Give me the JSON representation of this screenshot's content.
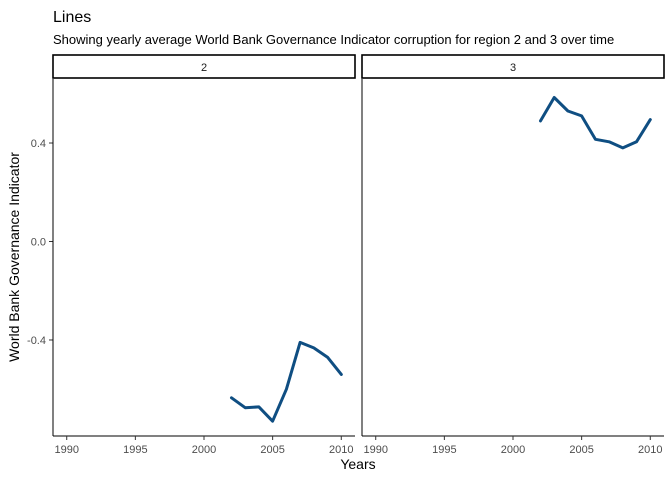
{
  "chart_data": {
    "type": "line",
    "title": "Lines",
    "subtitle": "Showing yearly average World Bank Governance Indicator corruption for region 2 and 3 over time",
    "xlabel": "Years",
    "ylabel": "World Bank Governance Indicator",
    "xlim": [
      1989,
      2011
    ],
    "ylim": [
      -0.79,
      0.66
    ],
    "x_ticks": [
      1990,
      1995,
      2000,
      2005,
      2010
    ],
    "y_ticks": [
      -0.4,
      0.0,
      0.4
    ],
    "y_tick_labels": [
      "-0.4",
      "0.0",
      "0.4"
    ],
    "grid": false,
    "line_color": "#0f4e82",
    "panels": [
      {
        "label": "2",
        "series": [
          {
            "x": [
              2002,
              2003,
              2004,
              2005,
              2006,
              2007,
              2008,
              2009,
              2010
            ],
            "y": [
              -0.635,
              -0.675,
              -0.672,
              -0.73,
              -0.6,
              -0.41,
              -0.432,
              -0.47,
              -0.54
            ]
          }
        ]
      },
      {
        "label": "3",
        "series": [
          {
            "x": [
              2002,
              2003,
              2004,
              2005,
              2006,
              2007,
              2008,
              2009,
              2010
            ],
            "y": [
              0.49,
              0.585,
              0.53,
              0.51,
              0.415,
              0.405,
              0.38,
              0.405,
              0.495
            ]
          }
        ]
      }
    ]
  }
}
